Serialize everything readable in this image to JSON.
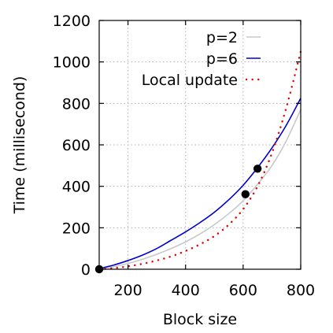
{
  "chart_data": {
    "type": "line",
    "title": "",
    "xlabel": "Block size",
    "ylabel": "Time (millisecond)",
    "xlim": [
      100,
      800
    ],
    "ylim": [
      0,
      1200
    ],
    "xticks": [
      200,
      400,
      600,
      800
    ],
    "yticks": [
      0,
      200,
      400,
      600,
      800,
      1000,
      1200
    ],
    "grid": true,
    "legend_position": "top-right",
    "series": [
      {
        "name": "p=2",
        "color": "#c8c8c8",
        "style": "solid",
        "x": [
          100,
          150,
          200,
          250,
          300,
          350,
          400,
          450,
          500,
          550,
          600,
          650,
          700,
          750,
          800
        ],
        "y": [
          2,
          12,
          28,
          48,
          72,
          100,
          132,
          170,
          215,
          268,
          330,
          410,
          500,
          620,
          770
        ]
      },
      {
        "name": "p=6",
        "color": "#0000cc",
        "style": "solid",
        "x": [
          100,
          150,
          200,
          250,
          300,
          350,
          400,
          450,
          500,
          550,
          600,
          650,
          700,
          750,
          800
        ],
        "y": [
          3,
          20,
          42,
          68,
          100,
          140,
          180,
          225,
          275,
          335,
          405,
          490,
          585,
          695,
          825
        ]
      },
      {
        "name": "Local update",
        "color": "#e00000",
        "style": "dotted",
        "x": [
          100,
          150,
          200,
          250,
          300,
          350,
          400,
          450,
          500,
          550,
          600,
          650,
          700,
          750,
          800
        ],
        "y": [
          0,
          5,
          14,
          26,
          42,
          62,
          88,
          120,
          160,
          215,
          290,
          400,
          560,
          780,
          1050
        ]
      }
    ],
    "points": [
      {
        "x": 100,
        "y": 0
      },
      {
        "x": 608,
        "y": 362
      },
      {
        "x": 650,
        "y": 485
      }
    ]
  }
}
